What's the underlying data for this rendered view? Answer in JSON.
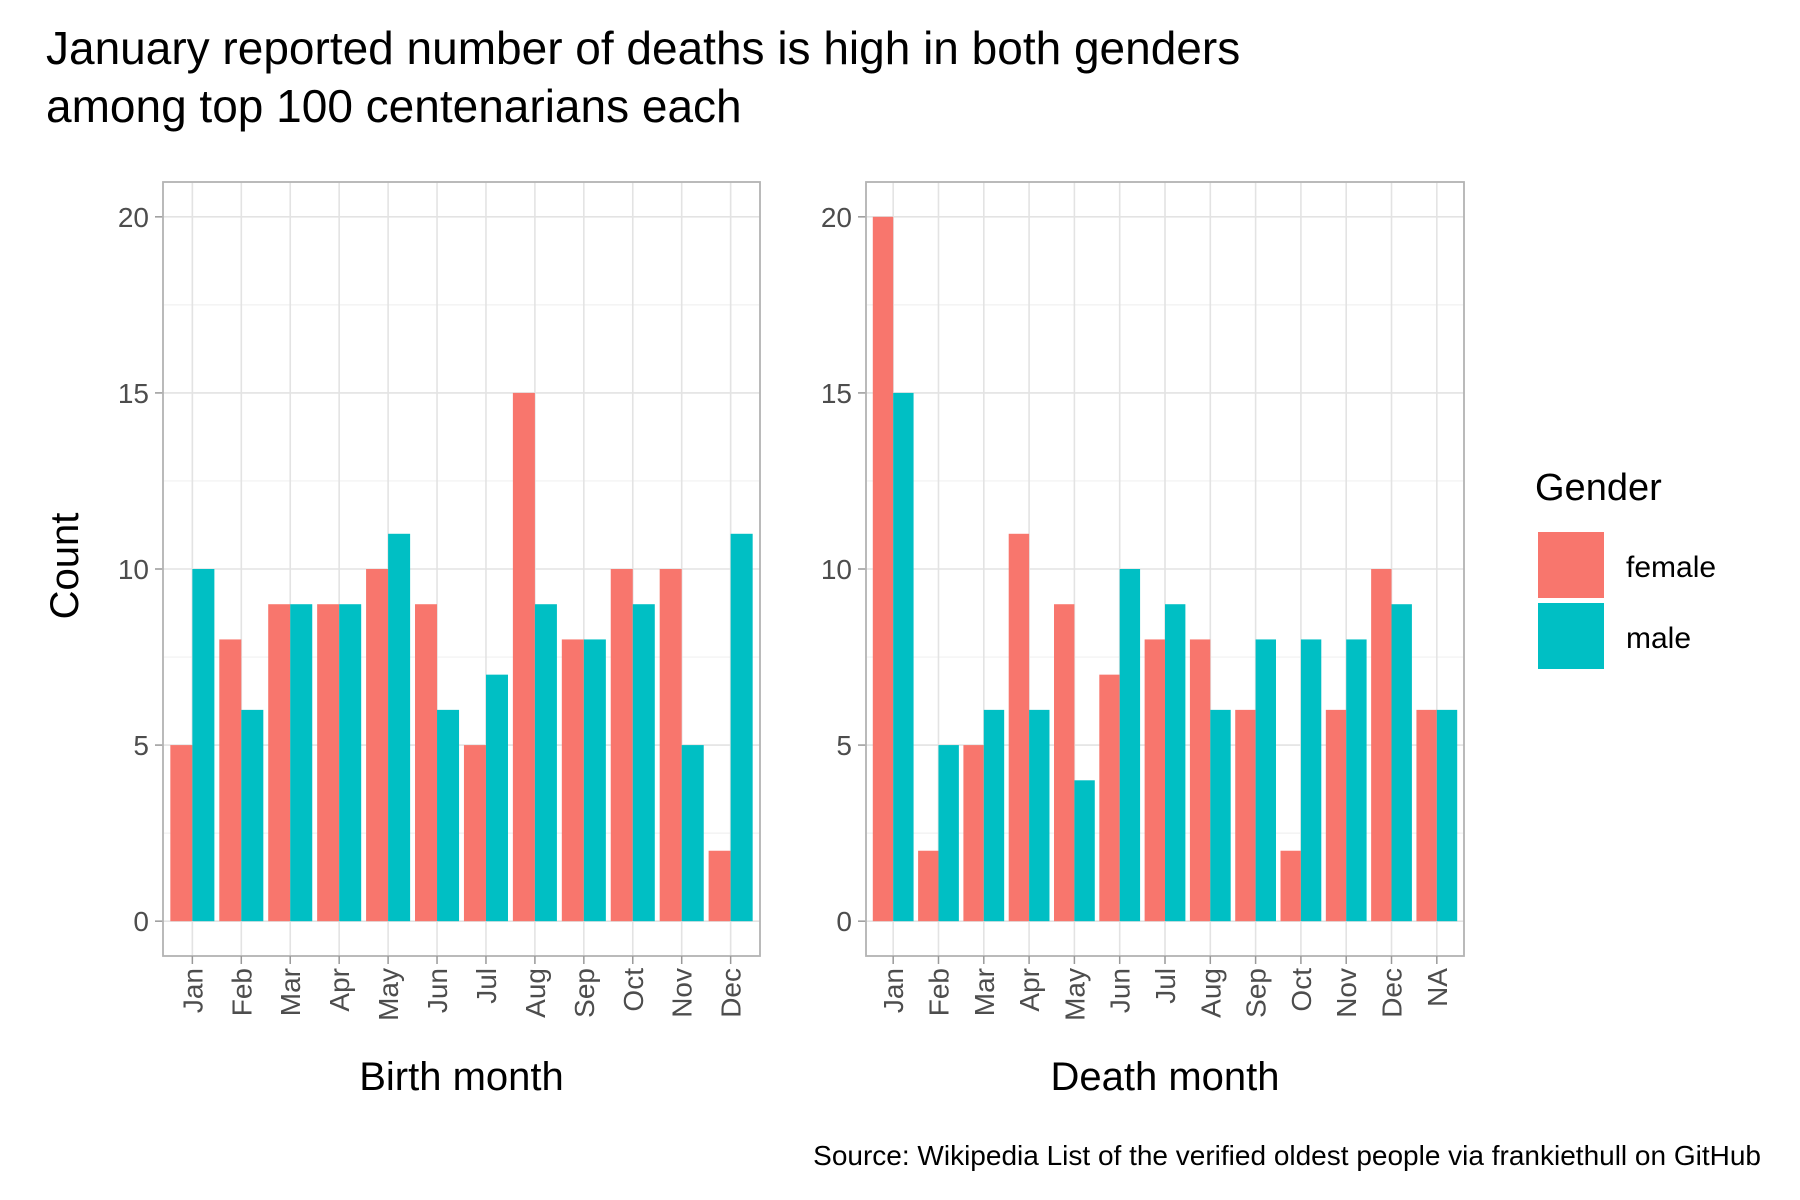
{
  "title_lines": [
    "January reported number of deaths is high in both genders",
    "among top 100 centenarians each"
  ],
  "caption": "Source: Wikipedia List of the verified oldest people via frankiethull on GitHub",
  "y_axis_title": "Count",
  "legend": {
    "title": "Gender",
    "position": "right",
    "items": [
      {
        "label": "female",
        "color": "#F8766D"
      },
      {
        "label": "male",
        "color": "#00BFC4"
      }
    ]
  },
  "chart_data": [
    {
      "type": "bar",
      "xlabel": "Birth month",
      "ylabel": "Count",
      "ylim": [
        0,
        20
      ],
      "y_ticks": [
        "0",
        "5",
        "10",
        "15",
        "20"
      ],
      "categories": [
        "Jan",
        "Feb",
        "Mar",
        "Apr",
        "May",
        "Jun",
        "Jul",
        "Aug",
        "Sep",
        "Oct",
        "Nov",
        "Dec"
      ],
      "series": [
        {
          "name": "female",
          "color": "#F8766D",
          "values": [
            5,
            8,
            9,
            9,
            10,
            9,
            5,
            15,
            8,
            10,
            10,
            2
          ]
        },
        {
          "name": "male",
          "color": "#00BFC4",
          "values": [
            10,
            6,
            9,
            9,
            11,
            6,
            7,
            9,
            8,
            9,
            5,
            11
          ]
        }
      ],
      "grid": true
    },
    {
      "type": "bar",
      "xlabel": "Death month",
      "ylabel": "Count",
      "ylim": [
        0,
        20
      ],
      "y_ticks": [
        "0",
        "5",
        "10",
        "15",
        "20"
      ],
      "categories": [
        "Jan",
        "Feb",
        "Mar",
        "Apr",
        "May",
        "Jun",
        "Jul",
        "Aug",
        "Sep",
        "Oct",
        "Nov",
        "Dec",
        "NA"
      ],
      "series": [
        {
          "name": "female",
          "color": "#F8766D",
          "values": [
            20,
            2,
            5,
            11,
            9,
            7,
            8,
            8,
            6,
            2,
            6,
            10,
            6
          ]
        },
        {
          "name": "male",
          "color": "#00BFC4",
          "values": [
            15,
            5,
            6,
            6,
            4,
            10,
            9,
            6,
            8,
            8,
            8,
            9,
            6
          ]
        }
      ],
      "grid": true
    }
  ]
}
